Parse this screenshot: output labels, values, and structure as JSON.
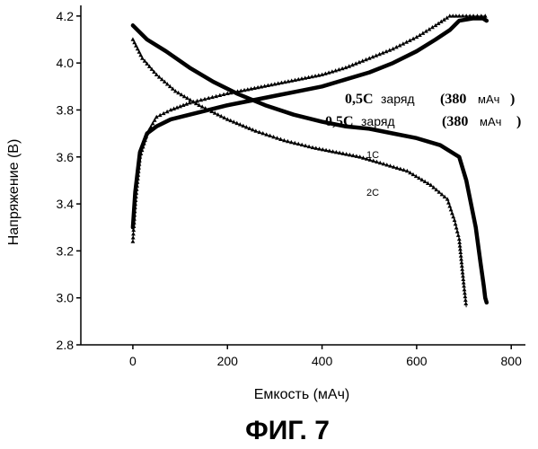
{
  "figure_label": "ФИГ. 7",
  "chart_data": {
    "type": "line",
    "xlabel": "Емкость (мАч)",
    "ylabel": "Напряжение (В)",
    "xlim": [
      -110,
      830
    ],
    "ylim": [
      2.8,
      4.23
    ],
    "x_ticks": [
      0,
      200,
      400,
      600,
      800
    ],
    "y_ticks": [
      2.8,
      3.0,
      3.2,
      3.4,
      3.6,
      3.8,
      4.0,
      4.2
    ],
    "x_tick_labels": [
      "0",
      "200",
      "400",
      "600",
      "800"
    ],
    "y_tick_labels": [
      "2.8",
      "3.0",
      "3.2",
      "3.4",
      "3.6",
      "3.8",
      "4.0",
      "4.2"
    ],
    "annotations": {
      "charge_1_rate": "0,5C",
      "charge_1_word": "заряд",
      "charge_1_cap": "(380",
      "charge_1_unit": "мАч",
      "charge_1_close": ")",
      "charge_2_rate": "0,5C",
      "charge_2_word": "заряд",
      "charge_2_cap": "(380",
      "charge_2_unit": "мАч",
      "charge_2_close": ")",
      "label_1c": "1C",
      "label_2c": "2C"
    },
    "series": [
      {
        "id": "charge-upper",
        "style": "triangle-markers",
        "x": [
          0,
          5,
          15,
          30,
          50,
          80,
          120,
          160,
          200,
          250,
          300,
          350,
          400,
          450,
          500,
          550,
          600,
          640,
          670,
          690,
          720,
          745,
          748
        ],
        "y": [
          3.24,
          3.4,
          3.6,
          3.7,
          3.77,
          3.8,
          3.83,
          3.85,
          3.87,
          3.89,
          3.91,
          3.93,
          3.95,
          3.98,
          4.02,
          4.06,
          4.11,
          4.16,
          4.2,
          4.2,
          4.2,
          4.2,
          4.18
        ]
      },
      {
        "id": "charge-lower",
        "style": "thick-line",
        "x": [
          0,
          5,
          15,
          30,
          50,
          80,
          120,
          160,
          200,
          250,
          300,
          350,
          400,
          450,
          500,
          550,
          600,
          640,
          670,
          690,
          720,
          740,
          748
        ],
        "y": [
          3.3,
          3.45,
          3.62,
          3.7,
          3.73,
          3.76,
          3.78,
          3.8,
          3.82,
          3.84,
          3.86,
          3.88,
          3.9,
          3.93,
          3.96,
          4.0,
          4.05,
          4.1,
          4.14,
          4.18,
          4.19,
          4.19,
          4.18
        ]
      },
      {
        "id": "discharge-1c",
        "style": "thick-line",
        "x": [
          0,
          30,
          70,
          120,
          170,
          220,
          280,
          340,
          400,
          450,
          500,
          550,
          600,
          650,
          690,
          705,
          715,
          725,
          735,
          742,
          745,
          748
        ],
        "y": [
          4.16,
          4.1,
          4.05,
          3.98,
          3.92,
          3.87,
          3.82,
          3.78,
          3.75,
          3.73,
          3.72,
          3.7,
          3.68,
          3.65,
          3.6,
          3.5,
          3.4,
          3.3,
          3.15,
          3.05,
          3.0,
          2.98
        ]
      },
      {
        "id": "discharge-2c",
        "style": "triangle-markers",
        "x": [
          0,
          20,
          50,
          90,
          140,
          200,
          260,
          320,
          380,
          430,
          480,
          530,
          580,
          630,
          665,
          680,
          690,
          695,
          700,
          705
        ],
        "y": [
          4.1,
          4.02,
          3.95,
          3.88,
          3.82,
          3.76,
          3.71,
          3.67,
          3.64,
          3.62,
          3.6,
          3.57,
          3.54,
          3.48,
          3.42,
          3.33,
          3.25,
          3.15,
          3.05,
          2.96
        ]
      }
    ]
  }
}
